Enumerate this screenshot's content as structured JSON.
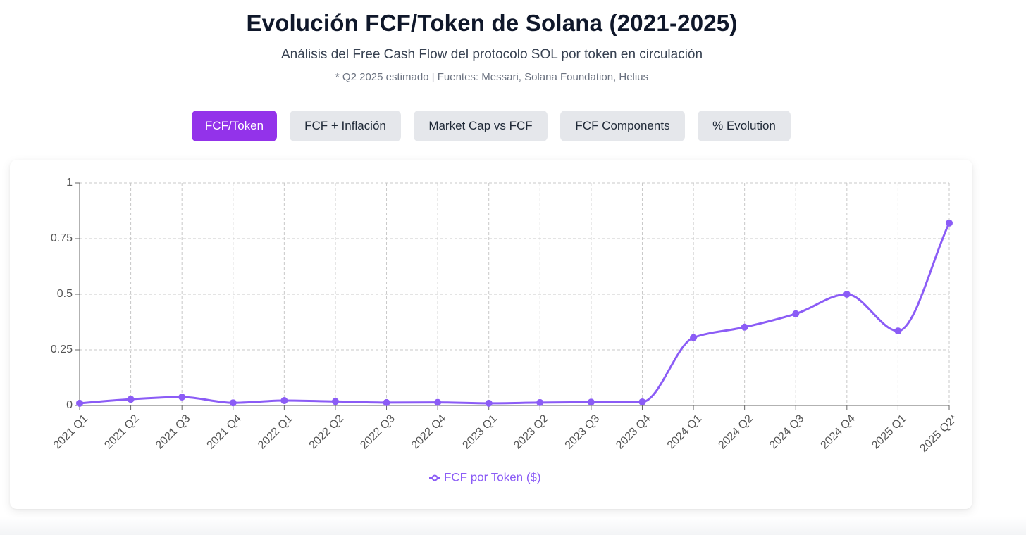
{
  "header": {
    "title": "Evolución FCF/Token de Solana (2021-2025)",
    "subtitle": "Análisis del Free Cash Flow del protocolo SOL por token en circulación",
    "note": "* Q2 2025 estimado | Fuentes: Messari, Solana Foundation, Helius"
  },
  "tabs": [
    {
      "label": "FCF/Token",
      "active": true
    },
    {
      "label": "FCF + Inflación",
      "active": false
    },
    {
      "label": "Market Cap vs FCF",
      "active": false
    },
    {
      "label": "FCF Components",
      "active": false
    },
    {
      "label": "% Evolution",
      "active": false
    }
  ],
  "colors": {
    "accent": "#9333ea",
    "series": "#8b5cf6",
    "tab_inactive": "#e5e7eb"
  },
  "chart_data": {
    "type": "line",
    "categories": [
      "2021 Q1",
      "2021 Q2",
      "2021 Q3",
      "2021 Q4",
      "2022 Q1",
      "2022 Q2",
      "2022 Q3",
      "2022 Q4",
      "2023 Q1",
      "2023 Q2",
      "2023 Q3",
      "2023 Q4",
      "2024 Q1",
      "2024 Q2",
      "2024 Q3",
      "2024 Q4",
      "2025 Q1",
      "2025 Q2*"
    ],
    "series": [
      {
        "name": "FCF por Token ($)",
        "values": [
          0.01,
          0.028,
          0.038,
          0.012,
          0.022,
          0.018,
          0.013,
          0.014,
          0.01,
          0.013,
          0.015,
          0.016,
          0.305,
          0.352,
          0.412,
          0.5,
          0.335,
          0.82
        ]
      }
    ],
    "yticks": [
      "0",
      "0.25",
      "0.5",
      "0.75",
      "1"
    ],
    "ylim": [
      0,
      1
    ],
    "grid": true,
    "legend_position": "bottom"
  }
}
